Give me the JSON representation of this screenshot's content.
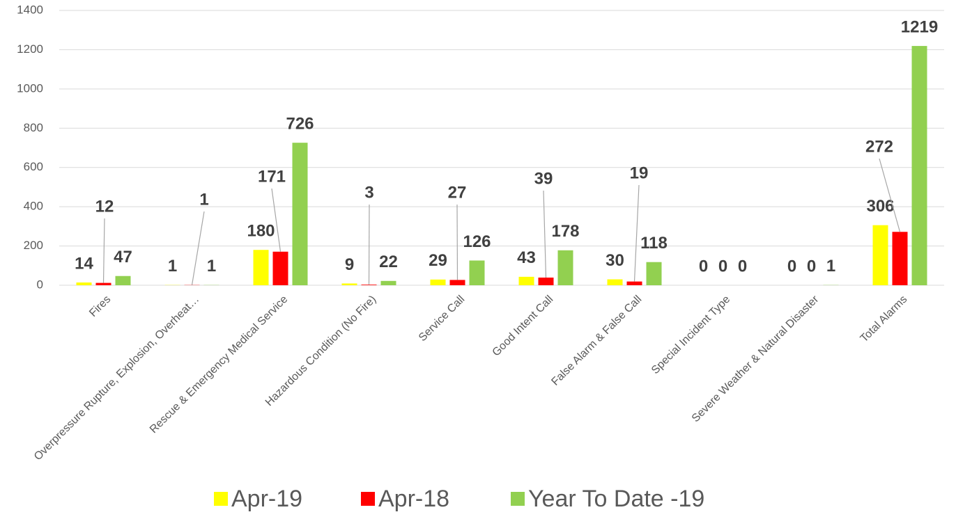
{
  "chart_data": {
    "type": "bar",
    "categories": [
      "Fires",
      "Overpressure Rupture, Explosion, Overheat…",
      "Rescue & Emergency Medical Service",
      "Hazardous Condition (No Fire)",
      "Service Call",
      "Good Intent Call",
      "False Alarm & False Call",
      "Special Incident Type",
      "Severe Weather & Natural Disaster",
      "Total Alarms"
    ],
    "series": [
      {
        "name": "Apr-19",
        "color": "#ffff00",
        "values": [
          14,
          1,
          180,
          9,
          29,
          43,
          30,
          0,
          0,
          306
        ]
      },
      {
        "name": "Apr-18",
        "color": "#ff0000",
        "values": [
          12,
          1,
          171,
          3,
          27,
          39,
          19,
          0,
          0,
          272
        ]
      },
      {
        "name": "Year To Date -19",
        "color": "#92d050",
        "values": [
          47,
          1,
          726,
          22,
          126,
          178,
          118,
          0,
          1,
          1219
        ]
      }
    ],
    "ylim": [
      0,
      1400
    ],
    "yticks": [
      0,
      200,
      400,
      600,
      800,
      1000,
      1200,
      1400
    ],
    "grid": true,
    "legend": "bottom"
  }
}
